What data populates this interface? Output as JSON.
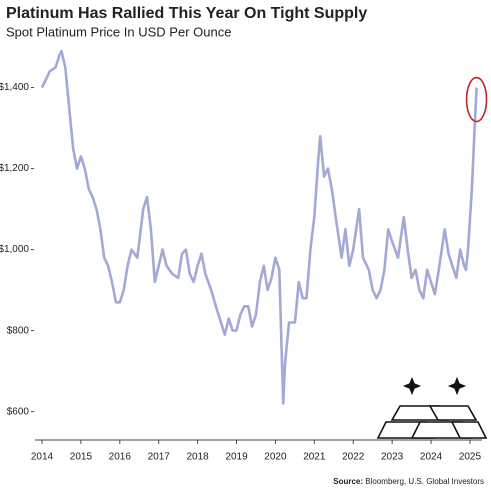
{
  "chart_data": {
    "type": "line",
    "title": "Platinum Has Rallied This Year On Tight Supply",
    "subtitle": "Spot Platinum Price In USD Per Ounce",
    "source_label": "Source:",
    "source": "Bloomberg, U.S. Global Investors",
    "color": "#a3a9d6",
    "x": [
      2014.0,
      2014.1,
      2014.2,
      2014.35,
      2014.45,
      2014.5,
      2014.6,
      2014.7,
      2014.8,
      2014.9,
      2015.0,
      2015.1,
      2015.2,
      2015.3,
      2015.4,
      2015.5,
      2015.6,
      2015.7,
      2015.8,
      2015.9,
      2016.0,
      2016.1,
      2016.2,
      2016.3,
      2016.45,
      2016.6,
      2016.7,
      2016.8,
      2016.9,
      2017.0,
      2017.1,
      2017.2,
      2017.35,
      2017.5,
      2017.6,
      2017.7,
      2017.8,
      2017.9,
      2018.0,
      2018.1,
      2018.2,
      2018.35,
      2018.5,
      2018.6,
      2018.7,
      2018.8,
      2018.9,
      2019.0,
      2019.1,
      2019.2,
      2019.3,
      2019.4,
      2019.5,
      2019.6,
      2019.7,
      2019.8,
      2019.9,
      2020.0,
      2020.1,
      2020.2,
      2020.25,
      2020.35,
      2020.5,
      2020.6,
      2020.7,
      2020.8,
      2020.9,
      2021.0,
      2021.1,
      2021.15,
      2021.25,
      2021.35,
      2021.45,
      2021.55,
      2021.7,
      2021.8,
      2021.9,
      2022.0,
      2022.15,
      2022.25,
      2022.4,
      2022.5,
      2022.6,
      2022.7,
      2022.8,
      2022.9,
      2023.0,
      2023.15,
      2023.3,
      2023.4,
      2023.5,
      2023.6,
      2023.7,
      2023.8,
      2023.9,
      2024.0,
      2024.1,
      2024.2,
      2024.35,
      2024.45,
      2024.55,
      2024.65,
      2024.75,
      2024.85,
      2024.9,
      2024.95,
      2025.05,
      2025.12,
      2025.17
    ],
    "values": [
      1400,
      1420,
      1440,
      1450,
      1480,
      1490,
      1450,
      1350,
      1250,
      1200,
      1230,
      1200,
      1150,
      1130,
      1100,
      1050,
      980,
      960,
      920,
      870,
      870,
      900,
      960,
      1000,
      980,
      1100,
      1130,
      1050,
      920,
      960,
      1000,
      960,
      940,
      930,
      990,
      1000,
      940,
      920,
      960,
      990,
      940,
      900,
      850,
      820,
      790,
      830,
      800,
      800,
      840,
      860,
      860,
      810,
      840,
      920,
      960,
      900,
      930,
      980,
      950,
      620,
      720,
      820,
      820,
      920,
      880,
      880,
      1000,
      1080,
      1220,
      1280,
      1180,
      1200,
      1150,
      1080,
      980,
      1050,
      960,
      1000,
      1100,
      980,
      950,
      900,
      880,
      900,
      950,
      1050,
      1020,
      980,
      1080,
      1000,
      930,
      950,
      900,
      880,
      950,
      920,
      890,
      950,
      1050,
      990,
      960,
      930,
      1000,
      960,
      950,
      1000,
      1150,
      1300,
      1400
    ],
    "xlim": [
      2013.82,
      2025.31
    ],
    "xticks": [
      2014,
      2015,
      2016,
      2017,
      2018,
      2019,
      2020,
      2021,
      2022,
      2023,
      2024,
      2025
    ],
    "ylim": [
      530,
      1505
    ],
    "yticks": [
      {
        "value": 600,
        "label": "$600"
      },
      {
        "value": 800,
        "label": "$800"
      },
      {
        "value": 1000,
        "label": "$1,000"
      },
      {
        "value": 1200,
        "label": "$1,200"
      },
      {
        "value": 1400,
        "label": "$1,400"
      }
    ]
  }
}
